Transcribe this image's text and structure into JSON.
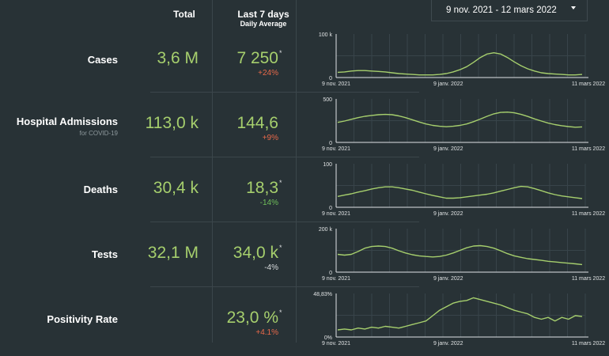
{
  "header": {
    "total": "Total",
    "last7": "Last 7 days",
    "daily_avg": "Daily Average"
  },
  "date_range": {
    "value": "9 nov. 2021 - 12 mars 2022"
  },
  "colors": {
    "accent": "#a6cf6d",
    "increase": "#e8694a",
    "decrease": "#6fbf5a",
    "neutral": "#d9dcde",
    "background": "#283236"
  },
  "icons": {
    "date_dropdown": "chevron-down-icon"
  },
  "rows": [
    {
      "label": "Cases",
      "sublabel": "",
      "total": "3,6 M",
      "avg": "7 250",
      "star": "*",
      "change": "+24%",
      "change_dir": "up",
      "chart": {
        "ymax_label": "100 k",
        "ymin_label": "0",
        "xlabels": [
          "9 nov. 2021",
          "9 janv. 2022",
          "11 mars 2022"
        ],
        "values": [
          12,
          13,
          15,
          16,
          16,
          15,
          14,
          13,
          11,
          9,
          8,
          7,
          6,
          6,
          6,
          7,
          9,
          13,
          18,
          25,
          35,
          46,
          54,
          57,
          54,
          46,
          36,
          27,
          20,
          15,
          11,
          9,
          8,
          7,
          6,
          6,
          7
        ]
      }
    },
    {
      "label": "Hospital Admissions",
      "sublabel": "for COVID-19",
      "total": "113,0 k",
      "avg": "144,6",
      "star": "",
      "change": "+9%",
      "change_dir": "up",
      "chart": {
        "ymax_label": "500",
        "ymin_label": "0",
        "xlabels": [
          "9 nov. 2021",
          "9 janv. 2022",
          "11 mars 2022"
        ],
        "values": [
          230,
          245,
          265,
          285,
          300,
          310,
          318,
          322,
          318,
          305,
          285,
          260,
          235,
          212,
          195,
          185,
          180,
          185,
          195,
          212,
          238,
          268,
          300,
          328,
          345,
          348,
          340,
          322,
          298,
          270,
          245,
          222,
          205,
          192,
          182,
          175,
          178
        ]
      }
    },
    {
      "label": "Deaths",
      "sublabel": "",
      "total": "30,4 k",
      "avg": "18,3",
      "star": "*",
      "change": "-14%",
      "change_dir": "down",
      "chart": {
        "ymax_label": "100",
        "ymin_label": "0",
        "xlabels": [
          "9 nov. 2021",
          "9 janv. 2022",
          "11 mars 2022"
        ],
        "values": [
          25,
          28,
          31,
          35,
          38,
          42,
          45,
          47,
          47,
          45,
          42,
          39,
          35,
          31,
          27,
          24,
          21,
          21,
          22,
          24,
          26,
          28,
          30,
          33,
          37,
          41,
          45,
          48,
          47,
          43,
          38,
          33,
          29,
          26,
          24,
          22,
          20
        ]
      }
    },
    {
      "label": "Tests",
      "sublabel": "",
      "total": "32,1 M",
      "avg": "34,0 k",
      "star": "*",
      "change": "-4%",
      "change_dir": "neutral",
      "chart": {
        "ymax_label": "200 k",
        "ymin_label": "0",
        "xlabels": [
          "9 nov. 2021",
          "9 janv. 2022",
          "11 mars 2022"
        ],
        "values": [
          82,
          78,
          82,
          95,
          110,
          118,
          120,
          118,
          110,
          98,
          88,
          80,
          75,
          72,
          70,
          72,
          78,
          88,
          100,
          112,
          120,
          122,
          118,
          110,
          98,
          85,
          75,
          68,
          62,
          58,
          54,
          50,
          47,
          44,
          41,
          38,
          35
        ]
      }
    },
    {
      "label": "Positivity Rate",
      "sublabel": "",
      "total": "",
      "avg": "23,0 %",
      "star": "*",
      "change": "+4.1%",
      "change_dir": "up",
      "chart": {
        "ymax_label": "48,83%",
        "ymin_label": "0%",
        "xlabels": [
          "9 nov. 2021",
          "9 janv. 2022",
          "11 mars 2022"
        ],
        "values": [
          8,
          9,
          8,
          10,
          9,
          11,
          10,
          12,
          11,
          10,
          12,
          14,
          16,
          18,
          24,
          30,
          34,
          38,
          40,
          41,
          44,
          42,
          40,
          38,
          36,
          33,
          30,
          28,
          26,
          22,
          20,
          22,
          18,
          22,
          20,
          24,
          23
        ]
      }
    }
  ]
}
